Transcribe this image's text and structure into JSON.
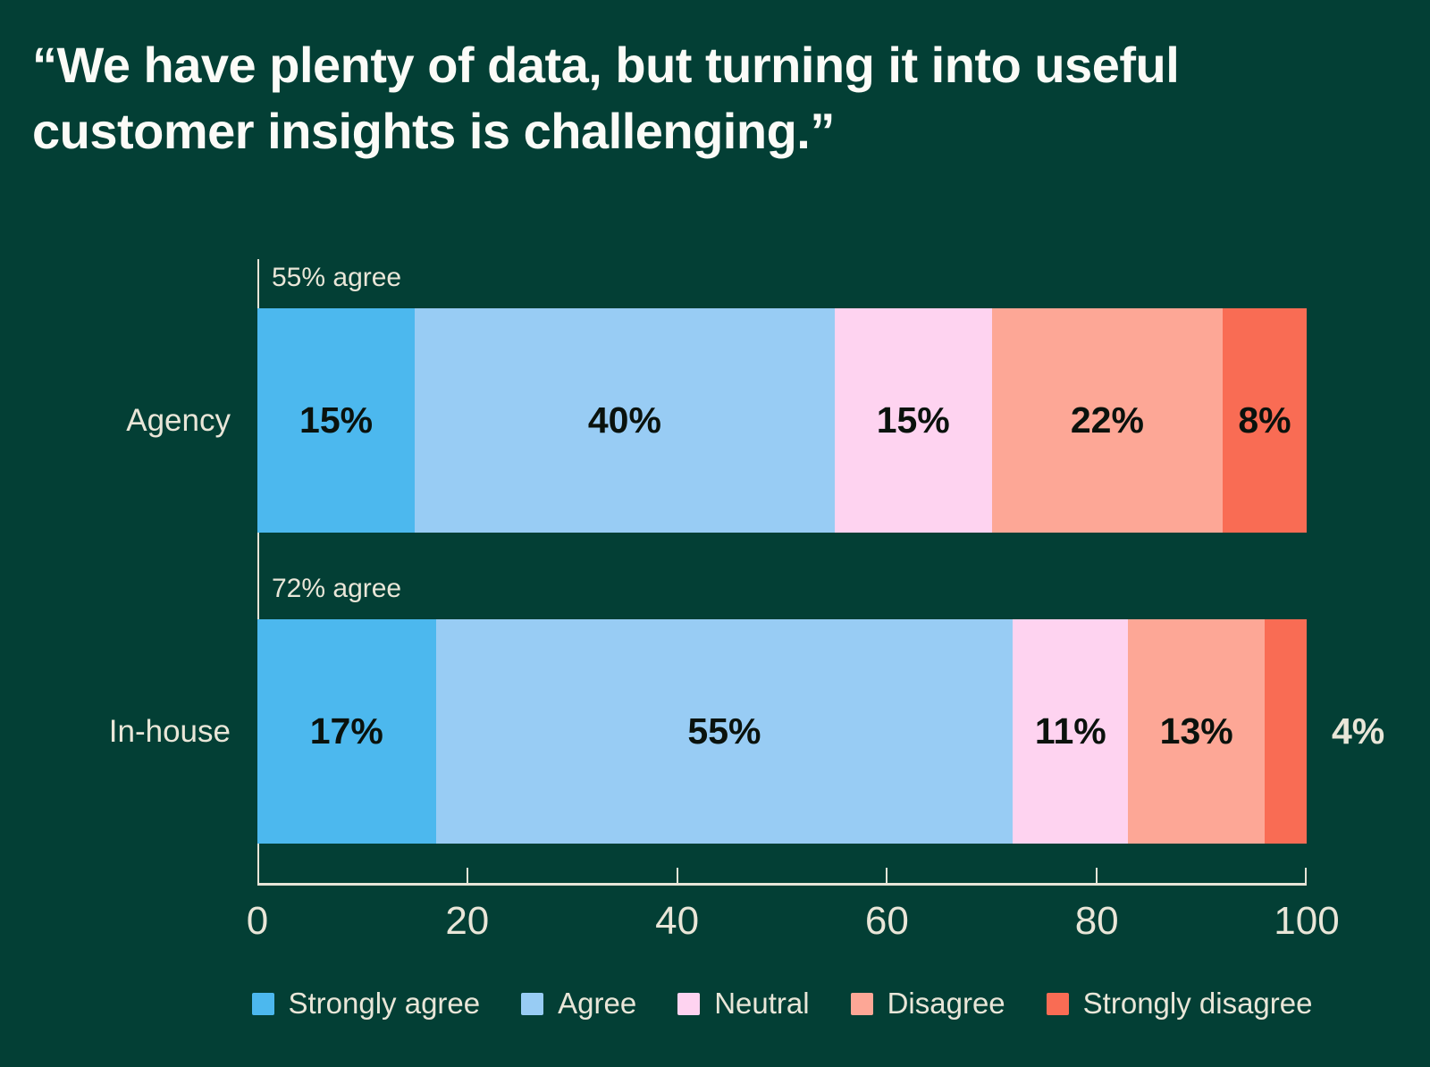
{
  "title": {
    "line1": "“We have plenty of data, but turning it into useful",
    "line2": "customer insights is challenging.”"
  },
  "colors": {
    "background": "#033F35",
    "title_text": "#FBFBF7",
    "cream_text": "#E9E6D8",
    "axis": "#E7E5D8",
    "bar_label_text": "#0A120D"
  },
  "chart_data": {
    "type": "bar",
    "stacked": true,
    "orientation": "horizontal",
    "title": "“We have plenty of data, but turning it into useful customer insights is challenging.”",
    "categories": [
      "Agency",
      "In-house"
    ],
    "series": [
      {
        "name": "Strongly agree",
        "color": "#4CB8EE",
        "values": [
          15,
          17
        ]
      },
      {
        "name": "Agree",
        "color": "#98CCF4",
        "values": [
          40,
          55
        ]
      },
      {
        "name": "Neutral",
        "color": "#FED3F0",
        "values": [
          15,
          11
        ]
      },
      {
        "name": "Disagree",
        "color": "#FDA796",
        "values": [
          22,
          13
        ]
      },
      {
        "name": "Strongly disagree",
        "color": "#F96C54",
        "values": [
          8,
          4
        ]
      }
    ],
    "bar_annotations": [
      "55% agree",
      "72% agree"
    ],
    "value_label_suffix": "%",
    "min_inside_label_value": 5,
    "xlim": [
      0,
      100
    ],
    "x_ticks": [
      "0",
      "20",
      "40",
      "60",
      "80",
      "100"
    ],
    "grid": false,
    "legend_position": "bottom"
  }
}
